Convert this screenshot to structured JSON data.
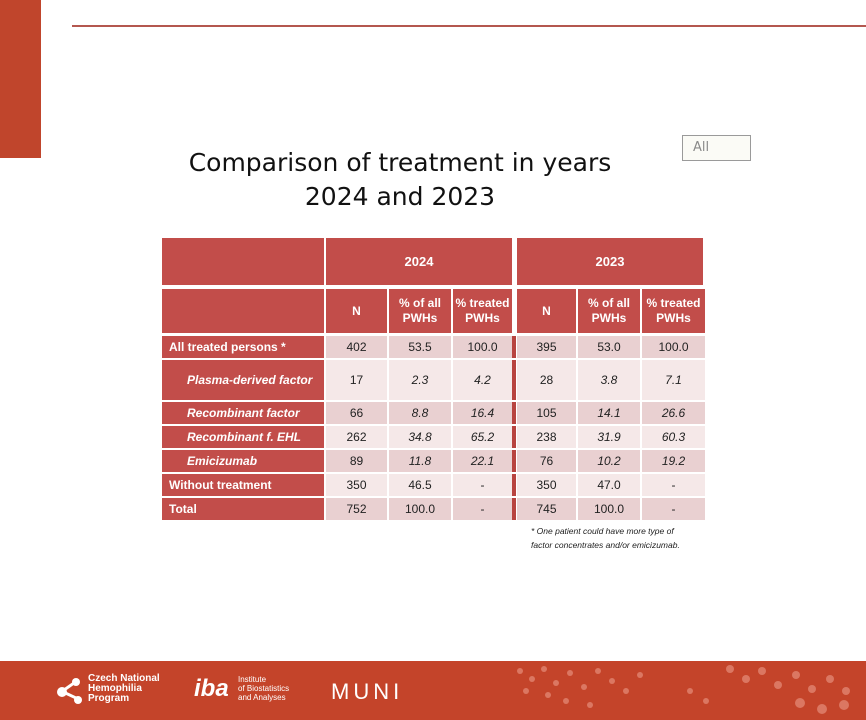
{
  "filter": {
    "value": "All"
  },
  "title": {
    "line1": "Comparison of treatment in years",
    "line2": "2024 and 2023"
  },
  "table": {
    "years": [
      "2024",
      "2023"
    ],
    "columns": [
      "N",
      "% of all PWHs",
      "% treated PWHs",
      "N",
      "% of all PWHs",
      "% treated PWHs"
    ],
    "rows": [
      {
        "label": "All treated persons *",
        "kind": "main",
        "cells": [
          "402",
          "53.5",
          "100.0",
          "395",
          "53.0",
          "100.0"
        ]
      },
      {
        "label": "Plasma-derived factor",
        "kind": "sub",
        "cells": [
          "17",
          "2.3",
          "4.2",
          "28",
          "3.8",
          "7.1"
        ]
      },
      {
        "label": "Recombinant factor",
        "kind": "sub",
        "cells": [
          "66",
          "8.8",
          "16.4",
          "105",
          "14.1",
          "26.6"
        ]
      },
      {
        "label": "Recombinant f. EHL",
        "kind": "sub",
        "cells": [
          "262",
          "34.8",
          "65.2",
          "238",
          "31.9",
          "60.3"
        ]
      },
      {
        "label": "Emicizumab",
        "kind": "sub",
        "cells": [
          "89",
          "11.8",
          "22.1",
          "76",
          "10.2",
          "19.2"
        ]
      },
      {
        "label": "Without treatment",
        "kind": "main",
        "cells": [
          "350",
          "46.5",
          "-",
          "350",
          "47.0",
          "-"
        ]
      },
      {
        "label": "Total",
        "kind": "main",
        "cells": [
          "752",
          "100.0",
          "-",
          "745",
          "100.0",
          "-"
        ]
      }
    ]
  },
  "footnote": {
    "line1": "* One patient could have more type of",
    "line2": "factor concentrates and/or emicizumab."
  },
  "footer": {
    "logo1": [
      "Czech National",
      "Hemophilia",
      "Program"
    ],
    "logo2_mark": "iba",
    "logo2": [
      "Institute",
      "of Biostatistics",
      "and Analyses"
    ],
    "logo3": "MUNI"
  },
  "colors": {
    "accent": "#c0452c",
    "header": "#c24d4a",
    "rowA": "#e9d0d1",
    "rowB": "#f5e8e8"
  }
}
